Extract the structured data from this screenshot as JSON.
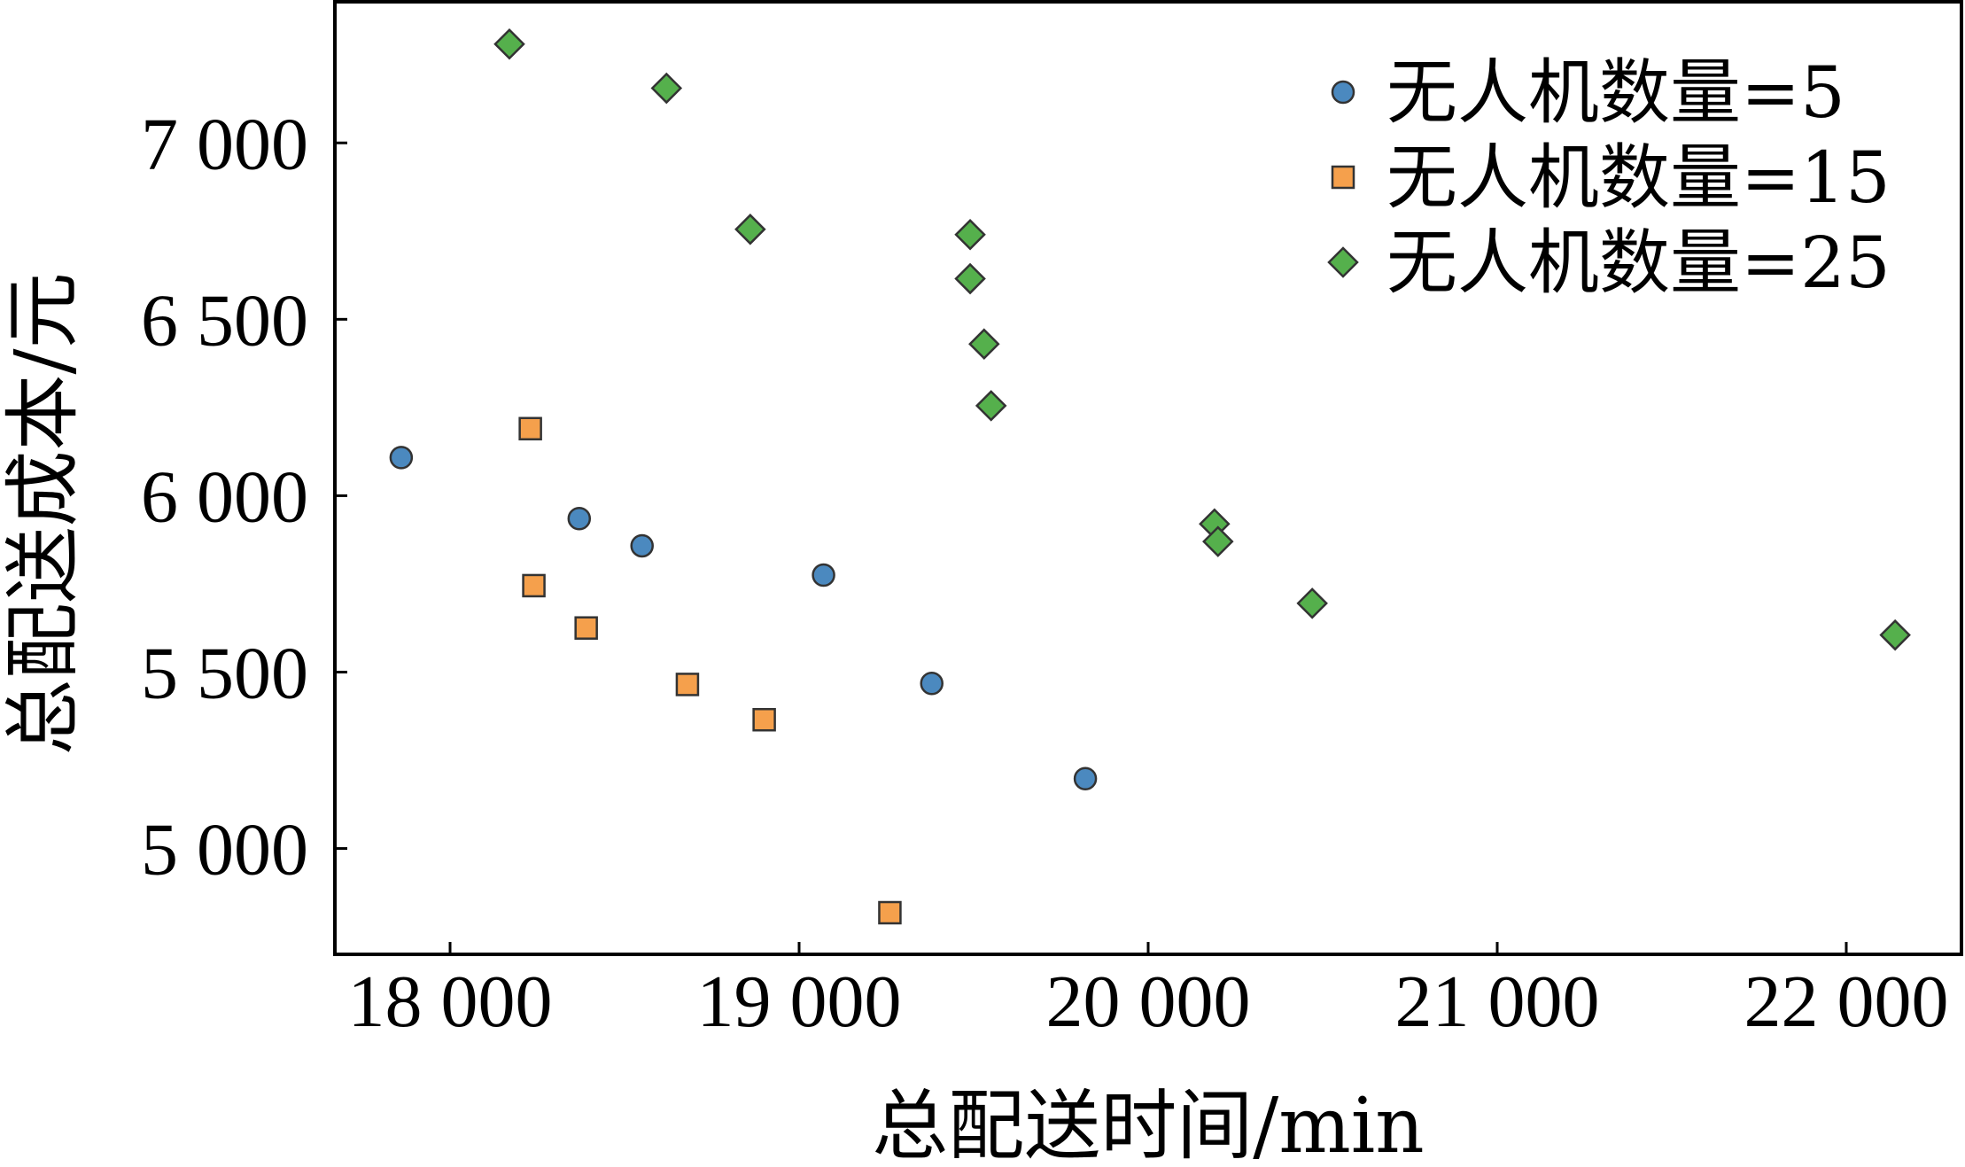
{
  "chart_data": {
    "type": "scatter",
    "title": "",
    "xlabel": "总配送时间/min",
    "ylabel": "总配送成本/元",
    "xlim": [
      17670,
      22330
    ],
    "ylim": [
      4700,
      7400
    ],
    "xticks": [
      18000,
      19000,
      20000,
      21000,
      22000
    ],
    "xtick_labels": [
      "18 000",
      "19 000",
      "20 000",
      "21 000",
      "22 000"
    ],
    "yticks": [
      5000,
      5500,
      6000,
      6500,
      7000
    ],
    "ytick_labels": [
      "5 000",
      "5 500",
      "6 000",
      "6 500",
      "7 000"
    ],
    "grid": false,
    "legend_position": "top-right",
    "series": [
      {
        "name": "无人机数量=5",
        "marker": "circle",
        "color": "#4b89bf",
        "points": [
          [
            17860,
            6108
          ],
          [
            18370,
            5935
          ],
          [
            18550,
            5858
          ],
          [
            19070,
            5775
          ],
          [
            19380,
            5468
          ],
          [
            19820,
            5198
          ]
        ]
      },
      {
        "name": "无人机数量=15",
        "marker": "square",
        "color": "#f5a04c",
        "points": [
          [
            18230,
            6190
          ],
          [
            18240,
            5745
          ],
          [
            18390,
            5625
          ],
          [
            18680,
            5465
          ],
          [
            18900,
            5365
          ],
          [
            19260,
            4818
          ]
        ]
      },
      {
        "name": "无人机数量=25",
        "marker": "diamond",
        "color": "#55b04c",
        "points": [
          [
            18170,
            7280
          ],
          [
            18620,
            7155
          ],
          [
            18860,
            6755
          ],
          [
            19490,
            6740
          ],
          [
            19490,
            6615
          ],
          [
            19530,
            6430
          ],
          [
            19550,
            6255
          ],
          [
            20190,
            5920
          ],
          [
            20200,
            5870
          ],
          [
            20470,
            5695
          ],
          [
            22140,
            5605
          ]
        ]
      }
    ]
  }
}
